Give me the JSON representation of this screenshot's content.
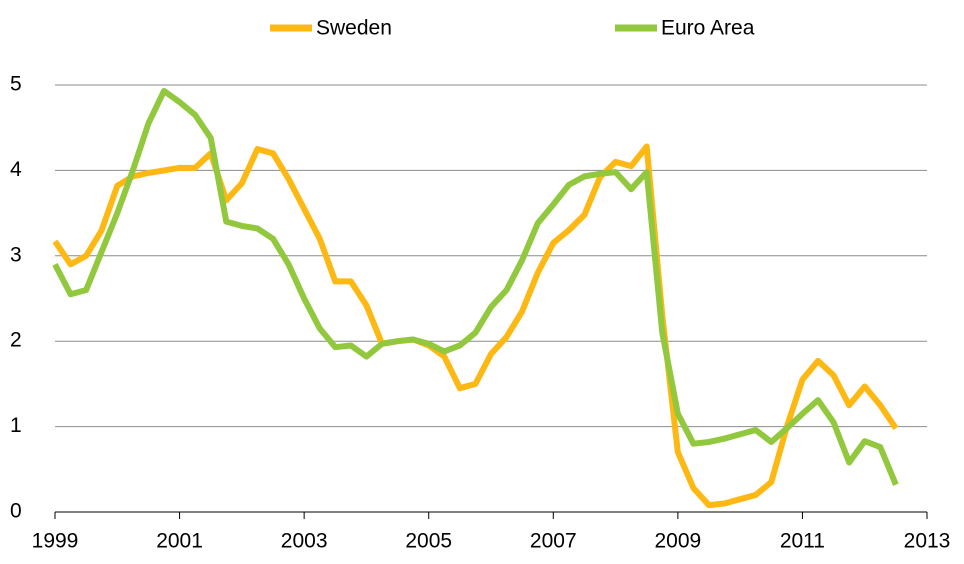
{
  "chart_data": {
    "type": "line",
    "x": [
      1999,
      1999.25,
      1999.5,
      1999.75,
      2000,
      2000.25,
      2000.5,
      2000.75,
      2001,
      2001.25,
      2001.5,
      2001.75,
      2002,
      2002.25,
      2002.5,
      2002.75,
      2003,
      2003.25,
      2003.5,
      2003.75,
      2004,
      2004.25,
      2004.5,
      2004.75,
      2005,
      2005.25,
      2005.5,
      2005.75,
      2006,
      2006.25,
      2006.5,
      2006.75,
      2007,
      2007.25,
      2007.5,
      2007.75,
      2008,
      2008.25,
      2008.5,
      2008.75,
      2009,
      2009.25,
      2009.5,
      2009.75,
      2010,
      2010.25,
      2010.5,
      2010.75,
      2011,
      2011.25,
      2011.5,
      2011.75,
      2012,
      2012.25,
      2012.5
    ],
    "series": [
      {
        "name": "Sweden",
        "color": "#fdb813",
        "values": [
          3.17,
          2.9,
          3.0,
          3.3,
          3.82,
          3.93,
          3.97,
          4.0,
          4.03,
          4.03,
          4.2,
          3.65,
          3.85,
          4.25,
          4.2,
          3.9,
          3.55,
          3.2,
          2.7,
          2.7,
          2.42,
          1.97,
          2.0,
          2.02,
          1.95,
          1.82,
          1.45,
          1.5,
          1.85,
          2.05,
          2.35,
          2.8,
          3.15,
          3.3,
          3.48,
          3.92,
          4.1,
          4.05,
          4.28,
          2.3,
          0.7,
          0.28,
          0.08,
          0.1,
          0.15,
          0.2,
          0.35,
          1.0,
          1.55,
          1.77,
          1.6,
          1.25,
          1.47,
          1.25,
          0.98
        ]
      },
      {
        "name": "Euro Area",
        "color": "#92c83e",
        "values": [
          2.9,
          2.55,
          2.6,
          3.05,
          3.5,
          4.0,
          4.55,
          4.93,
          4.8,
          4.65,
          4.38,
          3.4,
          3.35,
          3.32,
          3.2,
          2.9,
          2.5,
          2.15,
          1.93,
          1.95,
          1.82,
          1.97,
          2.0,
          2.02,
          1.97,
          1.88,
          1.95,
          2.1,
          2.4,
          2.6,
          2.95,
          3.38,
          3.6,
          3.83,
          3.93,
          3.96,
          3.98,
          3.78,
          3.98,
          2.1,
          1.15,
          0.8,
          0.82,
          0.86,
          0.91,
          0.96,
          0.82,
          0.98,
          1.15,
          1.31,
          1.05,
          0.58,
          0.83,
          0.76,
          0.32
        ]
      }
    ],
    "xlim": [
      1999,
      2013
    ],
    "xticks": [
      1999,
      2001,
      2003,
      2005,
      2007,
      2009,
      2011,
      2013
    ],
    "ylim": [
      0,
      5
    ],
    "yticks": [
      0,
      1,
      2,
      3,
      4,
      5
    ],
    "grid": true,
    "legend": "top"
  }
}
